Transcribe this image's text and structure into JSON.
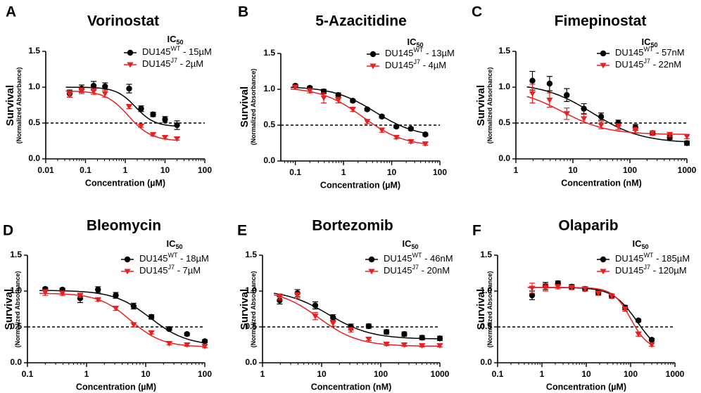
{
  "figure": {
    "ic50_label": "IC",
    "ic50_sub": "50",
    "ylabel_main": "Survival",
    "ylabel_sub": "(Normalized Absorbance)",
    "colors": {
      "wt": "#000000",
      "j7": "#e8201f",
      "threshold": "#000000"
    }
  },
  "chart_data": [
    {
      "letter": "A",
      "type": "scatter",
      "title": "Vorinostat",
      "xlabel": "Concentration (µM)",
      "x_scale": "log",
      "xlim": [
        0.01,
        100
      ],
      "x_ticks": [
        0.01,
        0.1,
        1,
        10,
        100
      ],
      "x_tick_labels": [
        "0.01",
        "0.1",
        "1",
        "10",
        "100"
      ],
      "ylim": [
        0,
        1.5
      ],
      "y_ticks": [
        0.0,
        0.5,
        1.0,
        1.5
      ],
      "y_tick_labels": [
        "0.0",
        "0.5",
        "1.0",
        "1.5"
      ],
      "threshold": 0.5,
      "series": [
        {
          "name": "DU145",
          "sup": "WT",
          "ic50_text": " - 15µM",
          "marker": "circle",
          "color": "#000000",
          "x": [
            0.04,
            0.08,
            0.16,
            0.31,
            1.25,
            2.5,
            5,
            10,
            20
          ],
          "y": [
            0.91,
            0.98,
            1.02,
            1.01,
            0.98,
            0.7,
            0.62,
            0.55,
            0.47
          ],
          "err": [
            0.05,
            0.05,
            0.06,
            0.05,
            0.06,
            0.04,
            0.03,
            0.04,
            0.06
          ],
          "fit": {
            "top": 1.0,
            "bottom": 0.45,
            "ic50": 1.8,
            "hill": 1.8
          }
        },
        {
          "name": "DU145",
          "sup": "J7",
          "ic50_text": " - 2µM",
          "marker": "triangle",
          "color": "#e8201f",
          "x": [
            0.04,
            0.08,
            0.16,
            0.31,
            1.25,
            2.5,
            5,
            10,
            20
          ],
          "y": [
            0.9,
            0.95,
            0.94,
            0.91,
            0.73,
            0.46,
            0.34,
            0.3,
            0.28
          ],
          "err": [
            0.04,
            0.04,
            0.04,
            0.05,
            0.03,
            0.02,
            0.02,
            0.02,
            0.02
          ],
          "fit": {
            "top": 0.95,
            "bottom": 0.25,
            "ic50": 1.2,
            "hill": 1.5
          }
        }
      ]
    },
    {
      "letter": "B",
      "type": "scatter",
      "title": "5-Azacitidine",
      "xlabel": "Concentration (µM)",
      "x_scale": "log",
      "xlim": [
        0.05,
        100
      ],
      "x_ticks": [
        0.1,
        1,
        10,
        100
      ],
      "x_tick_labels": [
        "0.1",
        "1",
        "10",
        "100"
      ],
      "ylim": [
        0,
        1.5
      ],
      "y_ticks": [
        0.0,
        0.5,
        1.0,
        1.5
      ],
      "y_tick_labels": [
        "0.0",
        "0.5",
        "1.0",
        "1.5"
      ],
      "threshold": 0.5,
      "series": [
        {
          "name": "DU145",
          "sup": "WT",
          "ic50_text": " - 13µM",
          "marker": "circle",
          "color": "#000000",
          "x": [
            0.1,
            0.2,
            0.39,
            0.78,
            1.56,
            3.1,
            6.25,
            12.5,
            25,
            50
          ],
          "y": [
            1.05,
            1.02,
            0.97,
            0.92,
            0.84,
            0.72,
            0.62,
            0.48,
            0.45,
            0.37
          ],
          "err": [
            0.02,
            0.02,
            0.03,
            0.03,
            0.02,
            0.02,
            0.02,
            0.02,
            0.02,
            0.02
          ],
          "fit": {
            "top": 1.04,
            "bottom": 0.33,
            "ic50": 4.5,
            "hill": 1.0
          }
        },
        {
          "name": "DU145",
          "sup": "J7",
          "ic50_text": " - 4µM",
          "marker": "triangle",
          "color": "#e8201f",
          "x": [
            0.1,
            0.2,
            0.39,
            0.78,
            1.56,
            3.1,
            6.25,
            12.5,
            25,
            50
          ],
          "y": [
            1.03,
            0.98,
            0.88,
            0.85,
            0.72,
            0.55,
            0.43,
            0.33,
            0.27,
            0.24
          ],
          "err": [
            0.03,
            0.03,
            0.07,
            0.04,
            0.03,
            0.03,
            0.03,
            0.02,
            0.02,
            0.02
          ],
          "fit": {
            "top": 1.03,
            "bottom": 0.2,
            "ic50": 2.5,
            "hill": 1.0
          }
        }
      ]
    },
    {
      "letter": "C",
      "type": "scatter",
      "title": "Fimepinostat",
      "xlabel": "Concentration (nM)",
      "x_scale": "log",
      "xlim": [
        1,
        1000
      ],
      "x_ticks": [
        1,
        10,
        100,
        1000
      ],
      "x_tick_labels": [
        "1",
        "10",
        "100",
        "1000"
      ],
      "ylim": [
        0,
        1.5
      ],
      "y_ticks": [
        0.0,
        0.5,
        1.0,
        1.5
      ],
      "y_tick_labels": [
        "0.0",
        "0.5",
        "1.0",
        "1.5"
      ],
      "threshold": 0.5,
      "series": [
        {
          "name": "DU145",
          "sup": "WT",
          "ic50_text": " - 57nM",
          "marker": "circle",
          "color": "#000000",
          "x": [
            1.95,
            3.9,
            7.8,
            15.6,
            31.25,
            62.5,
            125,
            250,
            500,
            1000
          ],
          "y": [
            1.09,
            1.05,
            0.89,
            0.7,
            0.59,
            0.5,
            0.44,
            0.36,
            0.3,
            0.22
          ],
          "err": [
            0.13,
            0.1,
            0.09,
            0.07,
            0.05,
            0.04,
            0.04,
            0.03,
            0.03,
            0.03
          ],
          "fit": {
            "top": 1.06,
            "bottom": 0.22,
            "ic50": 22,
            "hill": 1.0
          }
        },
        {
          "name": "DU145",
          "sup": "J7",
          "ic50_text": " - 22nM",
          "marker": "triangle",
          "color": "#e8201f",
          "x": [
            1.95,
            3.9,
            7.8,
            15.6,
            31.25,
            62.5,
            125,
            250,
            500,
            1000
          ],
          "y": [
            0.91,
            0.82,
            0.63,
            0.56,
            0.47,
            0.45,
            0.4,
            0.36,
            0.34,
            0.31
          ],
          "err": [
            0.13,
            0.1,
            0.08,
            0.06,
            0.05,
            0.04,
            0.04,
            0.03,
            0.03,
            0.03
          ],
          "fit": {
            "top": 0.98,
            "bottom": 0.34,
            "ic50": 6.5,
            "hill": 1.1
          }
        }
      ]
    },
    {
      "letter": "D",
      "type": "scatter",
      "title": "Bleomycin",
      "xlabel": "Concentration (µM)",
      "x_scale": "log",
      "xlim": [
        0.1,
        100
      ],
      "x_ticks": [
        0.1,
        1,
        10,
        100
      ],
      "x_tick_labels": [
        "0.1",
        "1",
        "10",
        "100"
      ],
      "ylim": [
        0,
        1.5
      ],
      "y_ticks": [
        0.0,
        0.5,
        1.0,
        1.5
      ],
      "y_tick_labels": [
        "0.0",
        "0.5",
        "1.0",
        "1.5"
      ],
      "threshold": 0.5,
      "series": [
        {
          "name": "DU145",
          "sup": "WT",
          "ic50_text": " - 18µM",
          "marker": "circle",
          "color": "#000000",
          "x": [
            0.2,
            0.39,
            0.78,
            1.56,
            3.12,
            6.25,
            12.5,
            25,
            50,
            100
          ],
          "y": [
            1.03,
            1.02,
            0.9,
            1.02,
            0.94,
            0.79,
            0.64,
            0.47,
            0.4,
            0.3
          ],
          "err": [
            0.02,
            0.02,
            0.06,
            0.04,
            0.04,
            0.04,
            0.03,
            0.02,
            0.02,
            0.02
          ],
          "fit": {
            "top": 1.01,
            "bottom": 0.24,
            "ic50": 12,
            "hill": 1.4
          }
        },
        {
          "name": "DU145",
          "sup": "J7",
          "ic50_text": " - 7µM",
          "marker": "triangle",
          "color": "#e8201f",
          "x": [
            0.2,
            0.39,
            0.78,
            1.56,
            3.12,
            6.25,
            12.5,
            25,
            50,
            100
          ],
          "y": [
            0.98,
            0.97,
            0.94,
            0.88,
            0.76,
            0.53,
            0.42,
            0.27,
            0.25,
            0.23
          ],
          "err": [
            0.04,
            0.03,
            0.03,
            0.02,
            0.03,
            0.03,
            0.02,
            0.02,
            0.02,
            0.02
          ],
          "fit": {
            "top": 0.97,
            "bottom": 0.22,
            "ic50": 5.5,
            "hill": 1.6
          }
        }
      ]
    },
    {
      "letter": "E",
      "type": "scatter",
      "title": "Bortezomib",
      "xlabel": "Concentration (nM)",
      "x_scale": "log",
      "xlim": [
        1,
        1000
      ],
      "x_ticks": [
        1,
        10,
        100,
        1000
      ],
      "x_tick_labels": [
        "1",
        "10",
        "100",
        "1000"
      ],
      "ylim": [
        0,
        1.5
      ],
      "y_ticks": [
        0.0,
        0.5,
        1.0,
        1.5
      ],
      "y_tick_labels": [
        "0.0",
        "0.5",
        "1.0",
        "1.5"
      ],
      "threshold": 0.5,
      "series": [
        {
          "name": "DU145",
          "sup": "WT",
          "ic50_text": " - 46nM",
          "marker": "circle",
          "color": "#000000",
          "x": [
            1.95,
            3.9,
            7.8,
            15.6,
            31.25,
            62.5,
            125,
            250,
            500,
            1000
          ],
          "y": [
            0.87,
            0.97,
            0.8,
            0.63,
            0.5,
            0.51,
            0.43,
            0.4,
            0.35,
            0.34
          ],
          "err": [
            0.05,
            0.05,
            0.05,
            0.04,
            0.04,
            0.03,
            0.03,
            0.03,
            0.03,
            0.03
          ],
          "fit": {
            "top": 1.02,
            "bottom": 0.33,
            "ic50": 13,
            "hill": 1.2
          }
        },
        {
          "name": "DU145",
          "sup": "J7",
          "ic50_text": " - 20nM",
          "marker": "triangle",
          "color": "#e8201f",
          "x": [
            1.95,
            3.9,
            7.8,
            15.6,
            31.25,
            62.5,
            125,
            250,
            500,
            1000
          ],
          "y": [
            0.92,
            0.94,
            0.65,
            0.55,
            0.46,
            0.33,
            0.26,
            0.25,
            0.24,
            0.24
          ],
          "err": [
            0.04,
            0.04,
            0.05,
            0.04,
            0.03,
            0.02,
            0.02,
            0.02,
            0.02,
            0.02
          ],
          "fit": {
            "top": 1.02,
            "bottom": 0.23,
            "ic50": 9,
            "hill": 1.3
          }
        }
      ]
    },
    {
      "letter": "F",
      "type": "scatter",
      "title": "Olaparib",
      "xlabel": "Concentration (µM)",
      "x_scale": "log",
      "xlim": [
        0.1,
        1000
      ],
      "x_ticks": [
        0.1,
        1,
        10,
        100,
        1000
      ],
      "x_tick_labels": [
        "0.1",
        "1",
        "10",
        "100",
        "1000"
      ],
      "ylim": [
        0,
        1.5
      ],
      "y_ticks": [
        0.0,
        0.5,
        1.0,
        1.5
      ],
      "y_tick_labels": [
        "0.0",
        "0.5",
        "1.0",
        "1.5"
      ],
      "threshold": 0.5,
      "series": [
        {
          "name": "DU145",
          "sup": "WT",
          "ic50_text": " - 185µM",
          "marker": "circle",
          "color": "#000000",
          "x": [
            0.6,
            1.2,
            2.3,
            4.7,
            9.4,
            18.75,
            37.5,
            75,
            150,
            300
          ],
          "y": [
            0.94,
            1.07,
            1.11,
            1.06,
            1.03,
            0.98,
            0.93,
            0.77,
            0.59,
            0.32
          ],
          "err": [
            0.06,
            0.05,
            0.03,
            0.03,
            0.03,
            0.03,
            0.03,
            0.03,
            0.02,
            0.02
          ],
          "fit": {
            "top": 1.05,
            "bottom": 0.1,
            "ic50": 140,
            "hill": 1.6
          }
        },
        {
          "name": "DU145",
          "sup": "J7",
          "ic50_text": " - 120µM",
          "marker": "triangle",
          "color": "#e8201f",
          "x": [
            0.6,
            1.2,
            2.3,
            4.7,
            9.4,
            18.75,
            37.5,
            75,
            150,
            300
          ],
          "y": [
            1.04,
            1.05,
            1.06,
            1.05,
            1.03,
            0.97,
            0.93,
            0.75,
            0.4,
            0.25
          ],
          "err": [
            0.07,
            0.05,
            0.03,
            0.03,
            0.03,
            0.03,
            0.03,
            0.03,
            0.03,
            0.02
          ],
          "fit": {
            "top": 1.05,
            "bottom": 0.18,
            "ic50": 100,
            "hill": 2.2
          }
        }
      ]
    }
  ]
}
